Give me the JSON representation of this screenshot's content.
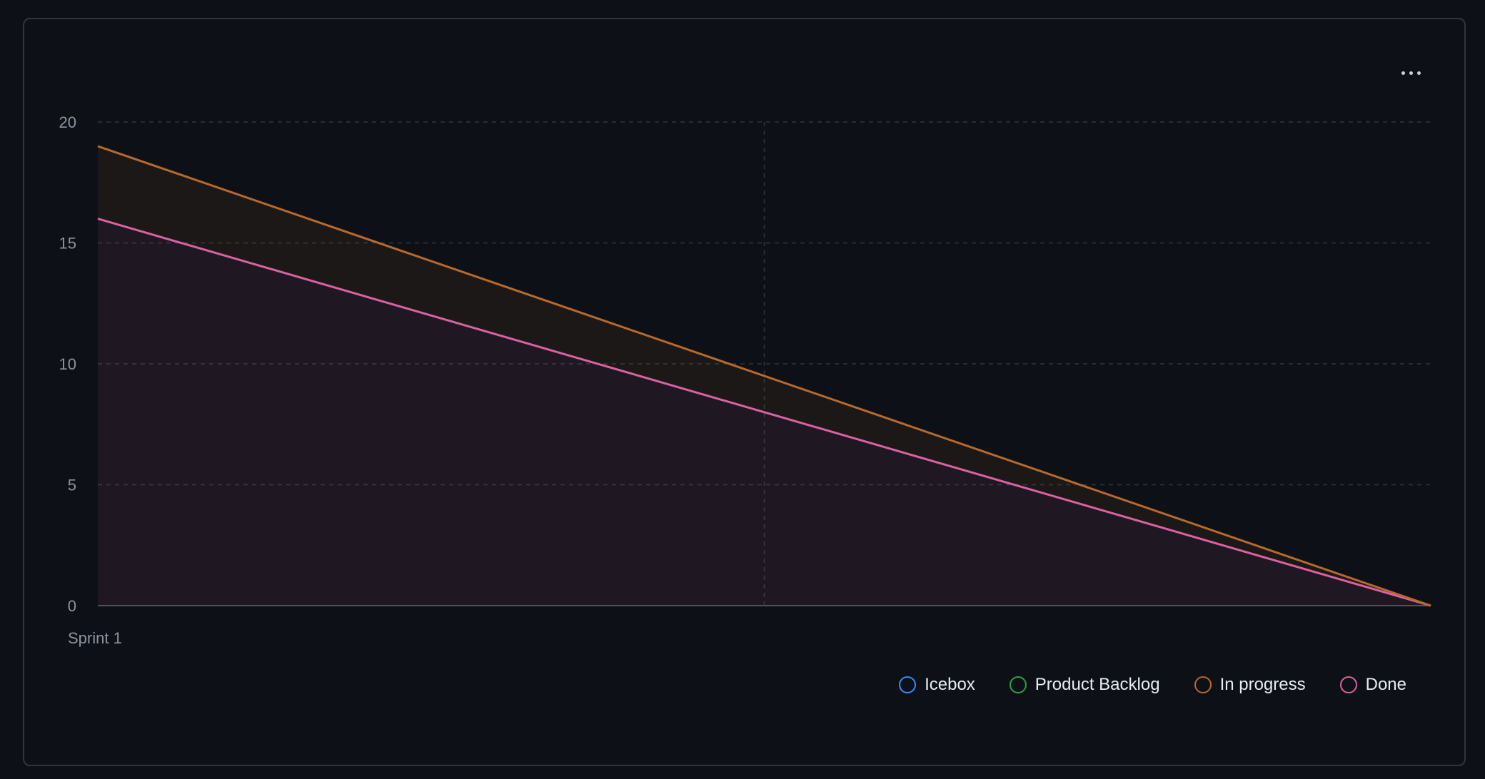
{
  "menu": {
    "icon": "more-horizontal-icon"
  },
  "colors": {
    "background": "#0d1117",
    "card_border": "#30363d",
    "grid": "#30363d",
    "tick_text": "#8b949e",
    "legend_text": "#e6edf3"
  },
  "chart_data": {
    "type": "area",
    "x_label": "Sprint 1",
    "y_ticks": [
      "0",
      "5",
      "10",
      "15",
      "20"
    ],
    "ylim": [
      0,
      20
    ],
    "xlim": [
      0,
      1
    ],
    "x": [
      0,
      1
    ],
    "grid": true,
    "legend_position": "bottom-right",
    "series": [
      {
        "name": "Icebox",
        "color": "#388bfd",
        "values": [
          0,
          0
        ]
      },
      {
        "name": "Product Backlog",
        "color": "#2ea043",
        "values": [
          0,
          0
        ]
      },
      {
        "name": "In progress",
        "color": "#b8692c",
        "values": [
          3,
          0
        ]
      },
      {
        "name": "Done",
        "color": "#db61a2",
        "values": [
          16,
          0
        ]
      }
    ]
  },
  "legend": {
    "items": [
      {
        "label": "Icebox",
        "color": "#388bfd"
      },
      {
        "label": "Product Backlog",
        "color": "#2ea043"
      },
      {
        "label": "In progress",
        "color": "#b8692c"
      },
      {
        "label": "Done",
        "color": "#db61a2"
      }
    ]
  }
}
